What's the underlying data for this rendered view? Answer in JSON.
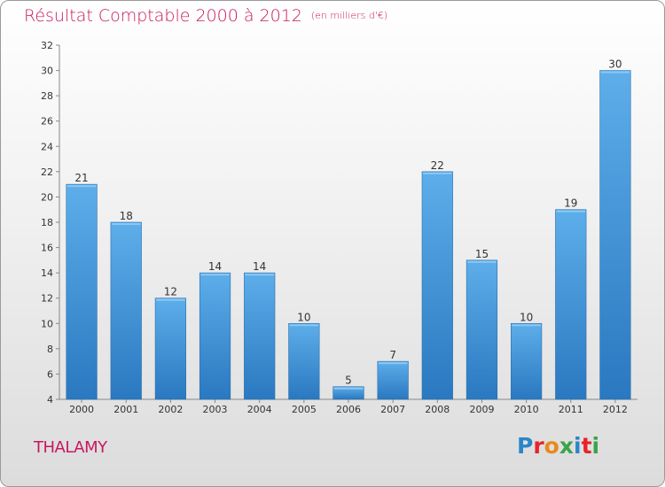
{
  "header": {
    "title": "Résultat Comptable 2000 à 2012",
    "subtitle": "(en milliers d'€)"
  },
  "footer": {
    "commune": "THALAMY",
    "logo_text": "Proxiti",
    "logo_colors": [
      "#2a86c8",
      "#e8232a",
      "#e88a1a",
      "#3aa34a",
      "#2a86c8",
      "#e8232a",
      "#3aa34a"
    ]
  },
  "chart_data": {
    "type": "bar",
    "title": "Résultat Comptable 2000 à 2012",
    "subtitle": "(en milliers d'€)",
    "categories": [
      "2000",
      "2001",
      "2002",
      "2003",
      "2004",
      "2005",
      "2006",
      "2007",
      "2008",
      "2009",
      "2010",
      "2011",
      "2012"
    ],
    "values": [
      21,
      18,
      12,
      14,
      14,
      10,
      5,
      7,
      22,
      15,
      10,
      19,
      30
    ],
    "ylim": [
      4,
      32
    ],
    "yticks": [
      4,
      6,
      8,
      10,
      12,
      14,
      16,
      18,
      20,
      22,
      24,
      26,
      28,
      30,
      32
    ],
    "grid": false,
    "bar_color": "#4a9ee0",
    "xlabel": "",
    "ylabel": ""
  }
}
